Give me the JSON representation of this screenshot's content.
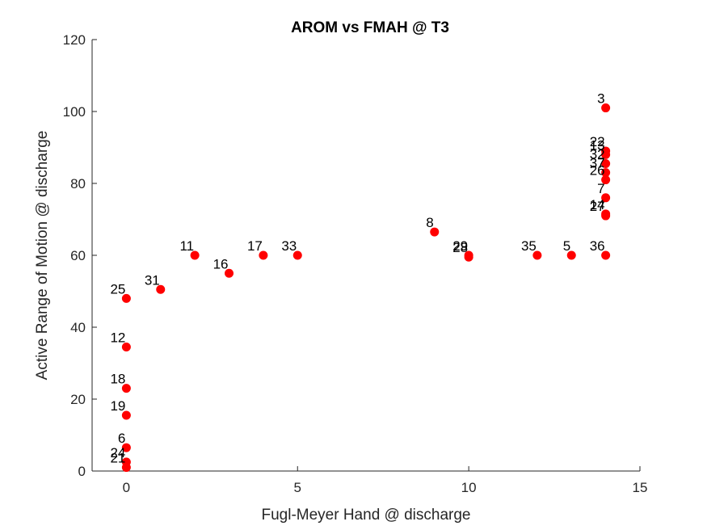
{
  "chart_data": {
    "type": "scatter",
    "title": "AROM vs FMAH @ T3",
    "xlabel": "Fugl-Meyer Hand @ discharge",
    "ylabel": "Active Range of Motion @ discharge",
    "xlim": [
      -1,
      15
    ],
    "ylim": [
      0,
      120
    ],
    "xticks": [
      0,
      5,
      10,
      15
    ],
    "yticks": [
      0,
      20,
      40,
      60,
      80,
      100,
      120
    ],
    "grid": false,
    "marker_color": "#ff0000",
    "points": [
      {
        "label": "3",
        "x": 14,
        "y": 101
      },
      {
        "label": "22",
        "x": 14,
        "y": 89
      },
      {
        "label": "13",
        "x": 14,
        "y": 88
      },
      {
        "label": "32",
        "x": 14,
        "y": 85.5
      },
      {
        "label": "37",
        "x": 14,
        "y": 83
      },
      {
        "label": "26",
        "x": 14,
        "y": 81
      },
      {
        "label": "7",
        "x": 14,
        "y": 76
      },
      {
        "label": "14",
        "x": 14,
        "y": 71.5
      },
      {
        "label": "27",
        "x": 14,
        "y": 71
      },
      {
        "label": "36",
        "x": 14,
        "y": 60
      },
      {
        "label": "5",
        "x": 13,
        "y": 60
      },
      {
        "label": "35",
        "x": 12,
        "y": 60
      },
      {
        "label": "29",
        "x": 10,
        "y": 60
      },
      {
        "label": "28",
        "x": 10,
        "y": 59.5
      },
      {
        "label": "8",
        "x": 9,
        "y": 66.5
      },
      {
        "label": "33",
        "x": 5,
        "y": 60
      },
      {
        "label": "17",
        "x": 4,
        "y": 60
      },
      {
        "label": "16",
        "x": 3,
        "y": 55
      },
      {
        "label": "11",
        "x": 2,
        "y": 60
      },
      {
        "label": "31",
        "x": 1,
        "y": 50.5
      },
      {
        "label": "25",
        "x": 0,
        "y": 48
      },
      {
        "label": "12",
        "x": 0,
        "y": 34.5
      },
      {
        "label": "18",
        "x": 0,
        "y": 23
      },
      {
        "label": "19",
        "x": 0,
        "y": 15.5
      },
      {
        "label": "6",
        "x": 0,
        "y": 6.5
      },
      {
        "label": "24",
        "x": 0,
        "y": 2.5
      },
      {
        "label": "21",
        "x": 0,
        "y": 1
      }
    ]
  }
}
